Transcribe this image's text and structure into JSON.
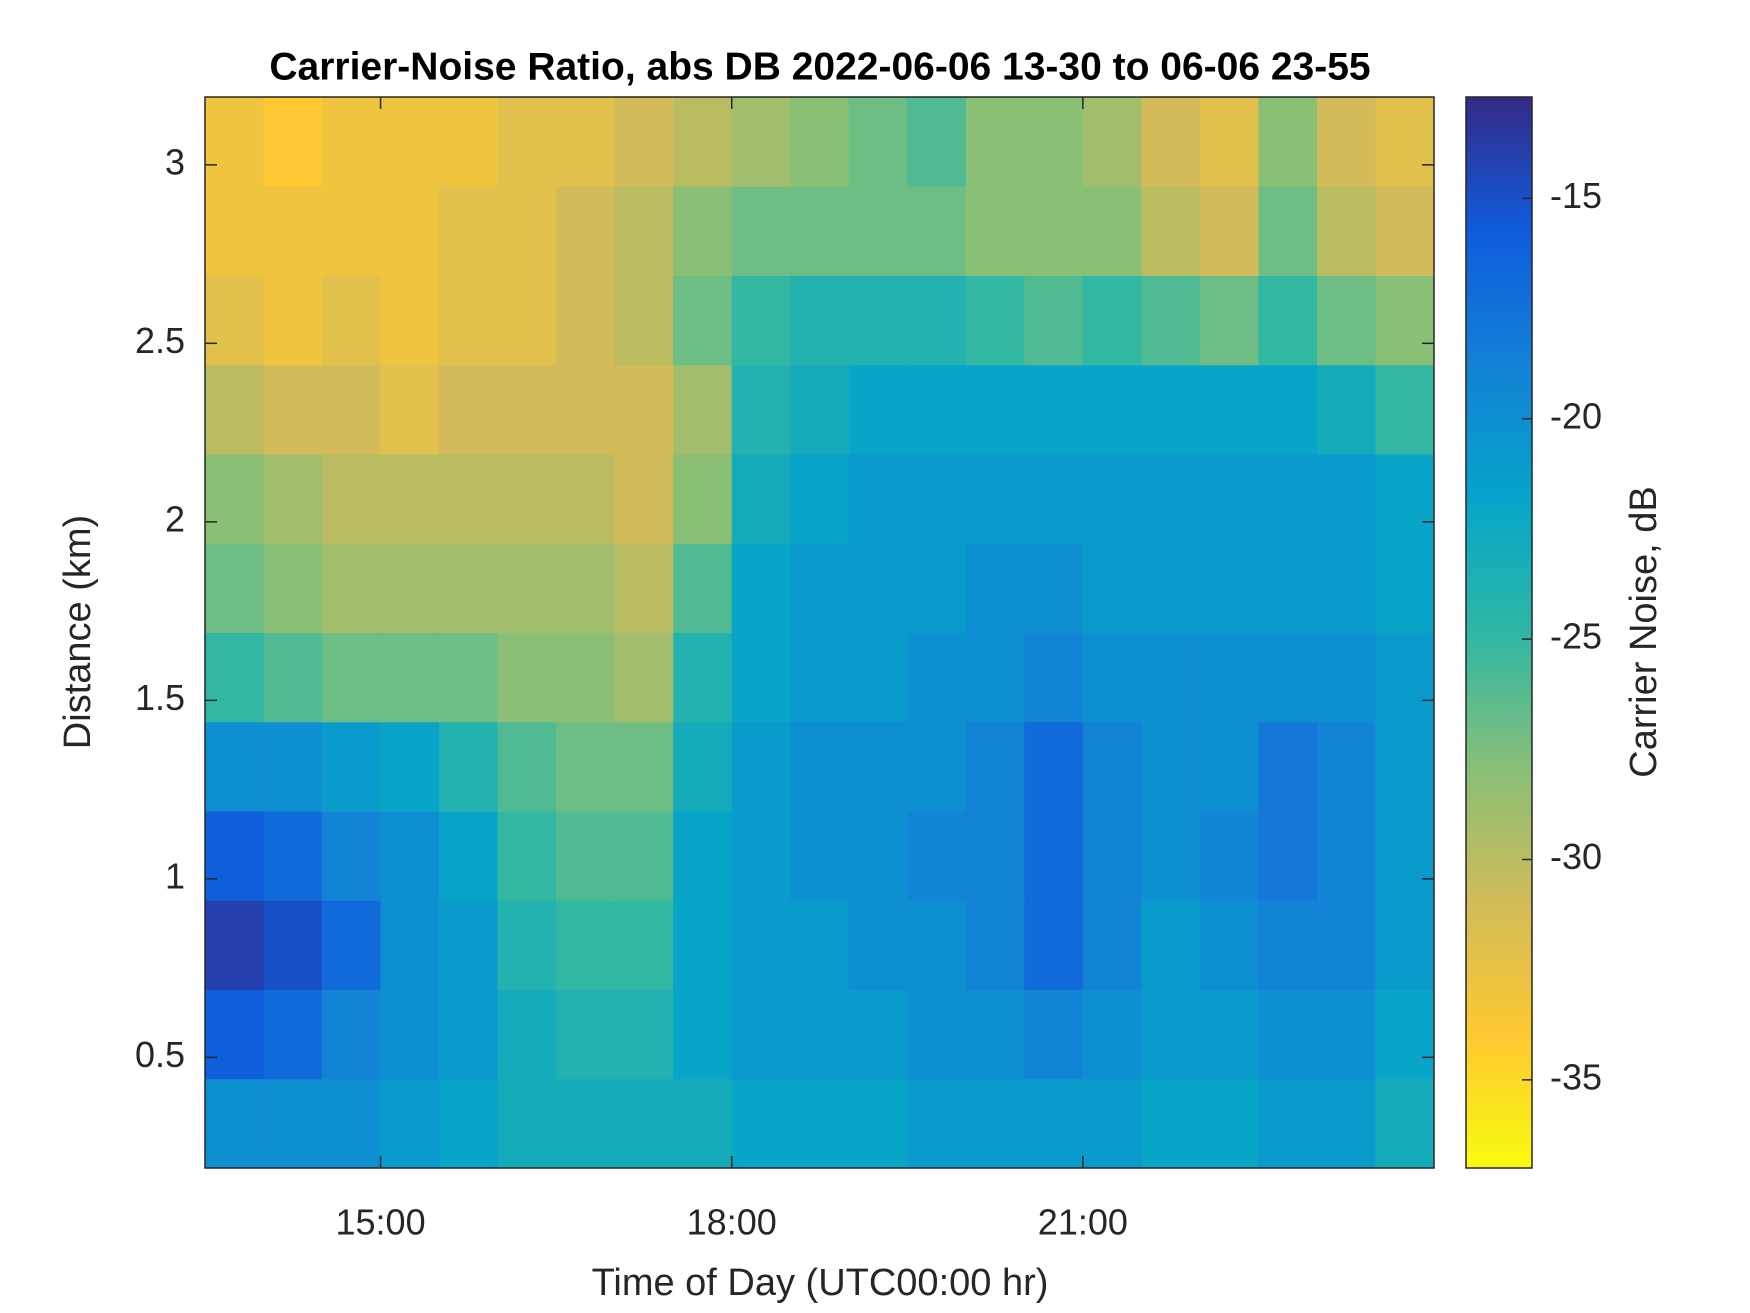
{
  "chart_data": {
    "type": "heatmap",
    "title": "Carrier-Noise Ratio, abs DB 2022-06-06 13-30 to 06-06 23-55",
    "x_label": "Time of Day (UTC00:00 hr)",
    "y_label": "Distance (km)",
    "colorbar_label": "Carrier Noise, dB",
    "xlim": [
      13.5,
      24
    ],
    "xticks": [
      {
        "value": 15,
        "label": "15:00"
      },
      {
        "value": 18,
        "label": "18:00"
      },
      {
        "value": 21,
        "label": "21:00"
      }
    ],
    "ylim": [
      0.19,
      3.19
    ],
    "yticks": [
      0.5,
      1,
      1.5,
      2,
      2.5,
      3
    ],
    "clim": [
      -37,
      -12.7
    ],
    "cticks": [
      -15,
      -20,
      -25,
      -30,
      -35
    ],
    "colormap": [
      "#f9fb0e",
      "#fec832",
      "#d1bb59",
      "#87bf77",
      "#2eb7a4",
      "#06a4ca",
      "#1481d6",
      "#0f5cdd",
      "#352a87"
    ],
    "xbins": [
      13.5,
      14,
      14.5,
      15,
      15.5,
      16,
      16.5,
      17,
      17.5,
      18,
      18.5,
      19,
      19.5,
      20,
      20.5,
      21,
      21.5,
      22,
      22.5,
      23,
      23.5,
      24
    ],
    "ybins": [
      0.19,
      0.44,
      0.69,
      0.94,
      1.19,
      1.44,
      1.69,
      1.94,
      2.19,
      2.44,
      2.69,
      2.94,
      3.19
    ],
    "z": [
      [
        -20,
        -20,
        -20,
        -21,
        -22,
        -23,
        -23,
        -23,
        -23,
        -22,
        -22,
        -22,
        -21,
        -21,
        -21,
        -21,
        -22,
        -22,
        -21,
        -21,
        -23
      ],
      [
        -16,
        -17,
        -19,
        -20,
        -21,
        -23,
        -24,
        -24,
        -22,
        -21,
        -21,
        -21,
        -20,
        -20,
        -19,
        -20,
        -21,
        -21,
        -20,
        -20,
        -22
      ],
      [
        -14,
        -15,
        -17,
        -20,
        -21,
        -24,
        -25,
        -25,
        -22,
        -21,
        -21,
        -20,
        -20,
        -19,
        -17,
        -19,
        -21,
        -20,
        -19,
        -19,
        -21
      ],
      [
        -16,
        -17,
        -19,
        -20,
        -22,
        -25,
        -26,
        -26,
        -22,
        -21,
        -20,
        -20,
        -19,
        -19,
        -17,
        -19,
        -20,
        -19,
        -18,
        -19,
        -21
      ],
      [
        -20,
        -20,
        -21,
        -22,
        -24,
        -26,
        -27,
        -27,
        -23,
        -21,
        -20,
        -20,
        -20,
        -19,
        -17,
        -19,
        -20,
        -20,
        -18,
        -19,
        -21
      ],
      [
        -25,
        -26,
        -27,
        -27,
        -27,
        -28,
        -28,
        -29,
        -24,
        -22,
        -21,
        -21,
        -20,
        -20,
        -19,
        -20,
        -20,
        -20,
        -20,
        -20,
        -21
      ],
      [
        -27,
        -28,
        -29,
        -29,
        -29,
        -29,
        -29,
        -30,
        -26,
        -22,
        -21,
        -21,
        -21,
        -20,
        -20,
        -21,
        -21,
        -21,
        -21,
        -21,
        -22
      ],
      [
        -28,
        -29,
        -30,
        -30,
        -30,
        -30,
        -30,
        -31,
        -28,
        -23,
        -22,
        -21,
        -21,
        -21,
        -21,
        -21,
        -21,
        -21,
        -21,
        -21,
        -22
      ],
      [
        -30,
        -31,
        -31,
        -32,
        -31,
        -31,
        -31,
        -31,
        -29,
        -24,
        -23,
        -22,
        -22,
        -22,
        -22,
        -22,
        -22,
        -22,
        -22,
        -23,
        -25
      ],
      [
        -32,
        -33,
        -32,
        -33,
        -32,
        -32,
        -31,
        -30,
        -27,
        -25,
        -24,
        -24,
        -24,
        -25,
        -26,
        -25,
        -26,
        -27,
        -25,
        -27,
        -28
      ],
      [
        -33,
        -33,
        -33,
        -33,
        -32,
        -32,
        -31,
        -30,
        -28,
        -27,
        -27,
        -27,
        -27,
        -28,
        -28,
        -28,
        -30,
        -31,
        -27,
        -30,
        -31
      ],
      [
        -33,
        -34,
        -33,
        -33,
        -33,
        -32,
        -32,
        -31,
        -30,
        -29,
        -28,
        -27,
        -26,
        -28,
        -28,
        -29,
        -31,
        -32,
        -28,
        -31,
        -32
      ]
    ]
  }
}
